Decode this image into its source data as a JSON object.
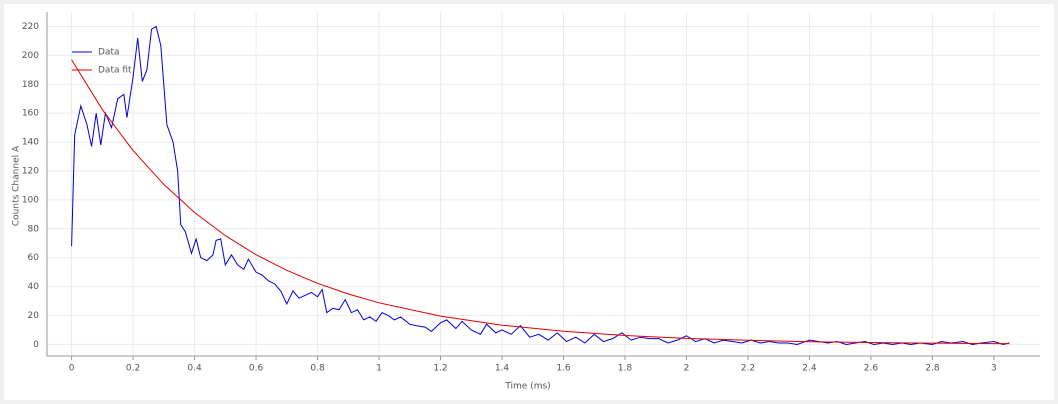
{
  "chart_data": {
    "type": "line",
    "xlabel": "Time (ms)",
    "ylabel": "Counts Channel A",
    "xlim": [
      -0.08,
      3.15
    ],
    "ylim": [
      -8,
      230
    ],
    "xticks": [
      0,
      0.2,
      0.4,
      0.6,
      0.8,
      1,
      1.2,
      1.4,
      1.6,
      1.8,
      2,
      2.2,
      2.4,
      2.6,
      2.8,
      3
    ],
    "yticks": [
      0,
      20,
      40,
      60,
      80,
      100,
      120,
      140,
      160,
      180,
      200,
      220
    ],
    "grid": true,
    "legend": "upper-left",
    "series": [
      {
        "name": "Data",
        "color": "#0000dd",
        "x": [
          0,
          0.01,
          0.03,
          0.05,
          0.065,
          0.08,
          0.095,
          0.11,
          0.13,
          0.15,
          0.17,
          0.18,
          0.2,
          0.215,
          0.23,
          0.245,
          0.26,
          0.275,
          0.29,
          0.31,
          0.33,
          0.345,
          0.355,
          0.37,
          0.39,
          0.405,
          0.42,
          0.44,
          0.46,
          0.47,
          0.485,
          0.5,
          0.52,
          0.54,
          0.56,
          0.575,
          0.6,
          0.62,
          0.64,
          0.66,
          0.68,
          0.7,
          0.72,
          0.74,
          0.76,
          0.78,
          0.8,
          0.815,
          0.83,
          0.85,
          0.87,
          0.89,
          0.91,
          0.93,
          0.95,
          0.97,
          0.99,
          1.01,
          1.03,
          1.05,
          1.07,
          1.1,
          1.12,
          1.15,
          1.17,
          1.2,
          1.22,
          1.25,
          1.27,
          1.3,
          1.33,
          1.35,
          1.38,
          1.4,
          1.43,
          1.46,
          1.49,
          1.52,
          1.55,
          1.58,
          1.61,
          1.64,
          1.67,
          1.7,
          1.73,
          1.76,
          1.79,
          1.82,
          1.85,
          1.88,
          1.91,
          1.94,
          1.97,
          2,
          2.03,
          2.06,
          2.09,
          2.12,
          2.15,
          2.18,
          2.21,
          2.24,
          2.27,
          2.3,
          2.33,
          2.36,
          2.4,
          2.43,
          2.46,
          2.49,
          2.52,
          2.55,
          2.58,
          2.61,
          2.64,
          2.67,
          2.7,
          2.73,
          2.76,
          2.8,
          2.83,
          2.86,
          2.9,
          2.93,
          2.96,
          3,
          3.03,
          3.05
        ],
        "values": [
          68,
          145,
          165,
          152,
          137,
          160,
          138,
          160,
          150,
          170,
          173,
          157,
          185,
          212,
          182,
          190,
          218,
          220,
          207,
          152,
          140,
          120,
          83,
          78,
          63,
          73,
          60,
          58,
          62,
          72,
          73,
          55,
          62,
          55,
          52,
          59,
          50,
          48,
          44,
          42,
          37,
          28,
          37,
          32,
          34,
          36,
          33,
          38,
          22,
          25,
          24,
          31,
          22,
          24,
          17,
          19,
          16,
          22,
          20,
          17,
          19,
          14,
          13,
          12,
          9,
          15,
          17,
          11,
          16,
          10,
          7,
          14,
          8,
          10,
          7,
          13,
          5,
          7,
          3,
          8,
          2,
          5,
          1,
          7,
          2,
          4,
          8,
          3,
          5,
          4,
          4,
          1,
          3,
          6,
          2,
          4,
          1,
          3,
          2,
          1,
          3,
          1,
          2,
          1,
          1,
          0,
          3,
          2,
          1,
          2,
          0,
          1,
          2,
          0,
          1,
          0,
          1,
          0,
          1,
          0,
          2,
          1,
          2,
          0,
          1,
          2,
          0,
          1
        ]
      },
      {
        "name": "Data fit",
        "color": "#e00000",
        "x": [
          0,
          0.1,
          0.2,
          0.3,
          0.4,
          0.5,
          0.6,
          0.7,
          0.8,
          0.9,
          1,
          1.2,
          1.4,
          1.6,
          1.8,
          2,
          2.2,
          2.4,
          2.6,
          2.8,
          3,
          3.05
        ],
        "values": [
          197,
          162.5,
          134.1,
          110.7,
          91.3,
          75.3,
          62.1,
          51.3,
          42.3,
          34.9,
          28.8,
          19.6,
          13.3,
          9.1,
          6.2,
          4.2,
          2.9,
          1.9,
          1.3,
          0.9,
          0.6,
          0.6
        ]
      }
    ]
  }
}
